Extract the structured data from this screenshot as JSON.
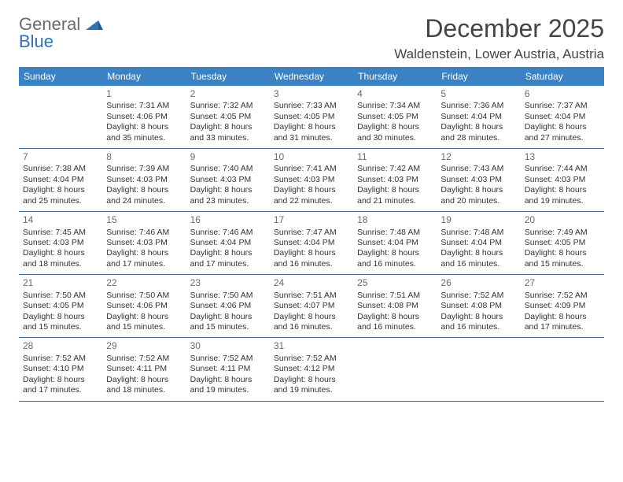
{
  "logo": {
    "general": "General",
    "blue": "Blue"
  },
  "title": "December 2025",
  "location": "Waldenstein, Lower Austria, Austria",
  "colors": {
    "header_bg": "#3b82c4",
    "header_text": "#ffffff",
    "divider": "#3b6fa0",
    "day_num": "#6b6b6b",
    "body_text": "#333333",
    "logo_gray": "#6b6b6b",
    "logo_blue": "#2f72b8"
  },
  "weekdays": [
    "Sunday",
    "Monday",
    "Tuesday",
    "Wednesday",
    "Thursday",
    "Friday",
    "Saturday"
  ],
  "weeks": [
    [
      {
        "empty": true
      },
      {
        "num": "1",
        "sunrise": "Sunrise: 7:31 AM",
        "sunset": "Sunset: 4:06 PM",
        "day1": "Daylight: 8 hours",
        "day2": "and 35 minutes."
      },
      {
        "num": "2",
        "sunrise": "Sunrise: 7:32 AM",
        "sunset": "Sunset: 4:05 PM",
        "day1": "Daylight: 8 hours",
        "day2": "and 33 minutes."
      },
      {
        "num": "3",
        "sunrise": "Sunrise: 7:33 AM",
        "sunset": "Sunset: 4:05 PM",
        "day1": "Daylight: 8 hours",
        "day2": "and 31 minutes."
      },
      {
        "num": "4",
        "sunrise": "Sunrise: 7:34 AM",
        "sunset": "Sunset: 4:05 PM",
        "day1": "Daylight: 8 hours",
        "day2": "and 30 minutes."
      },
      {
        "num": "5",
        "sunrise": "Sunrise: 7:36 AM",
        "sunset": "Sunset: 4:04 PM",
        "day1": "Daylight: 8 hours",
        "day2": "and 28 minutes."
      },
      {
        "num": "6",
        "sunrise": "Sunrise: 7:37 AM",
        "sunset": "Sunset: 4:04 PM",
        "day1": "Daylight: 8 hours",
        "day2": "and 27 minutes."
      }
    ],
    [
      {
        "num": "7",
        "sunrise": "Sunrise: 7:38 AM",
        "sunset": "Sunset: 4:04 PM",
        "day1": "Daylight: 8 hours",
        "day2": "and 25 minutes."
      },
      {
        "num": "8",
        "sunrise": "Sunrise: 7:39 AM",
        "sunset": "Sunset: 4:03 PM",
        "day1": "Daylight: 8 hours",
        "day2": "and 24 minutes."
      },
      {
        "num": "9",
        "sunrise": "Sunrise: 7:40 AM",
        "sunset": "Sunset: 4:03 PM",
        "day1": "Daylight: 8 hours",
        "day2": "and 23 minutes."
      },
      {
        "num": "10",
        "sunrise": "Sunrise: 7:41 AM",
        "sunset": "Sunset: 4:03 PM",
        "day1": "Daylight: 8 hours",
        "day2": "and 22 minutes."
      },
      {
        "num": "11",
        "sunrise": "Sunrise: 7:42 AM",
        "sunset": "Sunset: 4:03 PM",
        "day1": "Daylight: 8 hours",
        "day2": "and 21 minutes."
      },
      {
        "num": "12",
        "sunrise": "Sunrise: 7:43 AM",
        "sunset": "Sunset: 4:03 PM",
        "day1": "Daylight: 8 hours",
        "day2": "and 20 minutes."
      },
      {
        "num": "13",
        "sunrise": "Sunrise: 7:44 AM",
        "sunset": "Sunset: 4:03 PM",
        "day1": "Daylight: 8 hours",
        "day2": "and 19 minutes."
      }
    ],
    [
      {
        "num": "14",
        "sunrise": "Sunrise: 7:45 AM",
        "sunset": "Sunset: 4:03 PM",
        "day1": "Daylight: 8 hours",
        "day2": "and 18 minutes."
      },
      {
        "num": "15",
        "sunrise": "Sunrise: 7:46 AM",
        "sunset": "Sunset: 4:03 PM",
        "day1": "Daylight: 8 hours",
        "day2": "and 17 minutes."
      },
      {
        "num": "16",
        "sunrise": "Sunrise: 7:46 AM",
        "sunset": "Sunset: 4:04 PM",
        "day1": "Daylight: 8 hours",
        "day2": "and 17 minutes."
      },
      {
        "num": "17",
        "sunrise": "Sunrise: 7:47 AM",
        "sunset": "Sunset: 4:04 PM",
        "day1": "Daylight: 8 hours",
        "day2": "and 16 minutes."
      },
      {
        "num": "18",
        "sunrise": "Sunrise: 7:48 AM",
        "sunset": "Sunset: 4:04 PM",
        "day1": "Daylight: 8 hours",
        "day2": "and 16 minutes."
      },
      {
        "num": "19",
        "sunrise": "Sunrise: 7:48 AM",
        "sunset": "Sunset: 4:04 PM",
        "day1": "Daylight: 8 hours",
        "day2": "and 16 minutes."
      },
      {
        "num": "20",
        "sunrise": "Sunrise: 7:49 AM",
        "sunset": "Sunset: 4:05 PM",
        "day1": "Daylight: 8 hours",
        "day2": "and 15 minutes."
      }
    ],
    [
      {
        "num": "21",
        "sunrise": "Sunrise: 7:50 AM",
        "sunset": "Sunset: 4:05 PM",
        "day1": "Daylight: 8 hours",
        "day2": "and 15 minutes."
      },
      {
        "num": "22",
        "sunrise": "Sunrise: 7:50 AM",
        "sunset": "Sunset: 4:06 PM",
        "day1": "Daylight: 8 hours",
        "day2": "and 15 minutes."
      },
      {
        "num": "23",
        "sunrise": "Sunrise: 7:50 AM",
        "sunset": "Sunset: 4:06 PM",
        "day1": "Daylight: 8 hours",
        "day2": "and 15 minutes."
      },
      {
        "num": "24",
        "sunrise": "Sunrise: 7:51 AM",
        "sunset": "Sunset: 4:07 PM",
        "day1": "Daylight: 8 hours",
        "day2": "and 16 minutes."
      },
      {
        "num": "25",
        "sunrise": "Sunrise: 7:51 AM",
        "sunset": "Sunset: 4:08 PM",
        "day1": "Daylight: 8 hours",
        "day2": "and 16 minutes."
      },
      {
        "num": "26",
        "sunrise": "Sunrise: 7:52 AM",
        "sunset": "Sunset: 4:08 PM",
        "day1": "Daylight: 8 hours",
        "day2": "and 16 minutes."
      },
      {
        "num": "27",
        "sunrise": "Sunrise: 7:52 AM",
        "sunset": "Sunset: 4:09 PM",
        "day1": "Daylight: 8 hours",
        "day2": "and 17 minutes."
      }
    ],
    [
      {
        "num": "28",
        "sunrise": "Sunrise: 7:52 AM",
        "sunset": "Sunset: 4:10 PM",
        "day1": "Daylight: 8 hours",
        "day2": "and 17 minutes."
      },
      {
        "num": "29",
        "sunrise": "Sunrise: 7:52 AM",
        "sunset": "Sunset: 4:11 PM",
        "day1": "Daylight: 8 hours",
        "day2": "and 18 minutes."
      },
      {
        "num": "30",
        "sunrise": "Sunrise: 7:52 AM",
        "sunset": "Sunset: 4:11 PM",
        "day1": "Daylight: 8 hours",
        "day2": "and 19 minutes."
      },
      {
        "num": "31",
        "sunrise": "Sunrise: 7:52 AM",
        "sunset": "Sunset: 4:12 PM",
        "day1": "Daylight: 8 hours",
        "day2": "and 19 minutes."
      },
      {
        "empty": true
      },
      {
        "empty": true
      },
      {
        "empty": true
      }
    ]
  ]
}
